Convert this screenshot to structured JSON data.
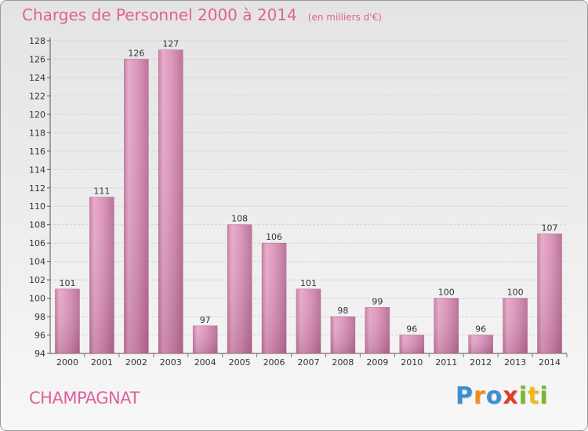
{
  "chart_data": {
    "type": "bar",
    "title": "Charges de Personnel 2000 à 2014",
    "subtitle": "(en milliers d'€)",
    "xlabel": "",
    "ylabel": "",
    "categories": [
      "2000",
      "2001",
      "2002",
      "2003",
      "2004",
      "2005",
      "2006",
      "2007",
      "2008",
      "2009",
      "2010",
      "2011",
      "2012",
      "2013",
      "2014"
    ],
    "values": [
      101,
      111,
      126,
      127,
      97,
      108,
      106,
      101,
      98,
      99,
      96,
      100,
      96,
      100,
      107
    ],
    "ylim": [
      94,
      128
    ],
    "yticks": [
      94,
      96,
      98,
      100,
      102,
      104,
      106,
      108,
      110,
      112,
      114,
      116,
      118,
      120,
      122,
      124,
      126,
      128
    ],
    "grid": true,
    "legend": "none",
    "bar_color": "#d98cb3"
  },
  "location": "CHAMPAGNAT",
  "brand": {
    "letters": [
      "P",
      "r",
      "o",
      "x",
      "i",
      "t",
      "i"
    ],
    "colors": [
      "#3a8fd6",
      "#f08a1c",
      "#3a8fd6",
      "#e23b2a",
      "#7ab631",
      "#f0b81c",
      "#7ab631"
    ]
  },
  "accent_color": "#e0609a"
}
